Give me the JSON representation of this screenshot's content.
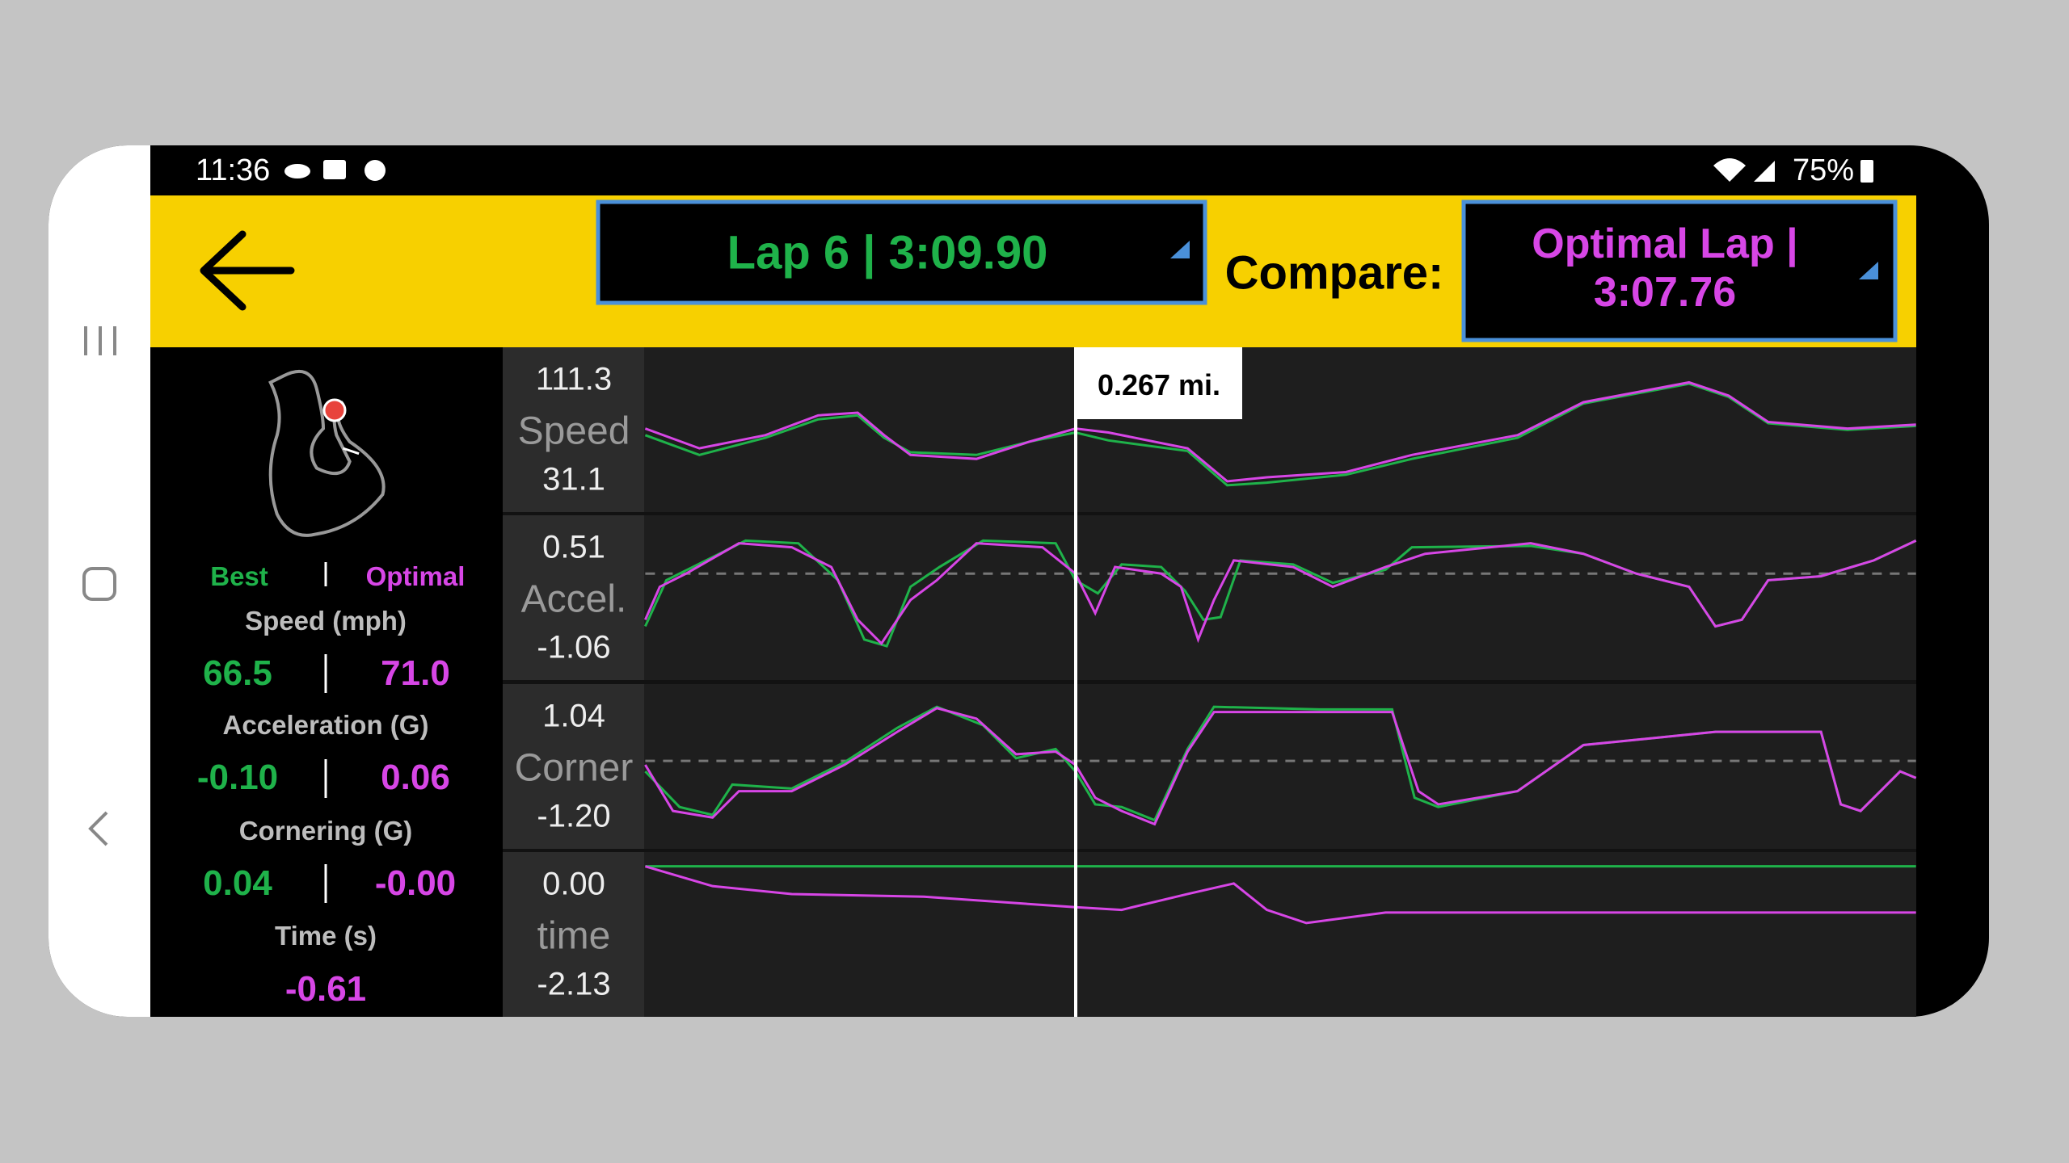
{
  "status_bar": {
    "time": "11:36",
    "battery": "75%"
  },
  "header": {
    "lap_selector": "Lap 6 | 3:09.90",
    "compare_label": "Compare:",
    "compare_selector": "Optimal Lap | 3:07.76"
  },
  "summary": {
    "best_label": "Best",
    "optimal_label": "Optimal",
    "metrics": [
      {
        "label": "Speed (mph)",
        "best": "66.5",
        "optimal": "71.0"
      },
      {
        "label": "Acceleration (G)",
        "best": "-0.10",
        "optimal": "0.06"
      },
      {
        "label": "Cornering (G)",
        "best": "0.04",
        "optimal": "-0.00"
      },
      {
        "label": "Time (s)",
        "optimal": "-0.61"
      }
    ]
  },
  "charts": [
    {
      "name": "Speed",
      "max": "111.3",
      "min": "31.1"
    },
    {
      "name": "Accel.",
      "max": "0.51",
      "min": "-1.06"
    },
    {
      "name": "Corner",
      "max": "1.04",
      "min": "-1.20"
    },
    {
      "name": "time",
      "max": "0.00",
      "min": "-2.13"
    }
  ],
  "cursor": {
    "distance": "0.267 mi."
  }
}
